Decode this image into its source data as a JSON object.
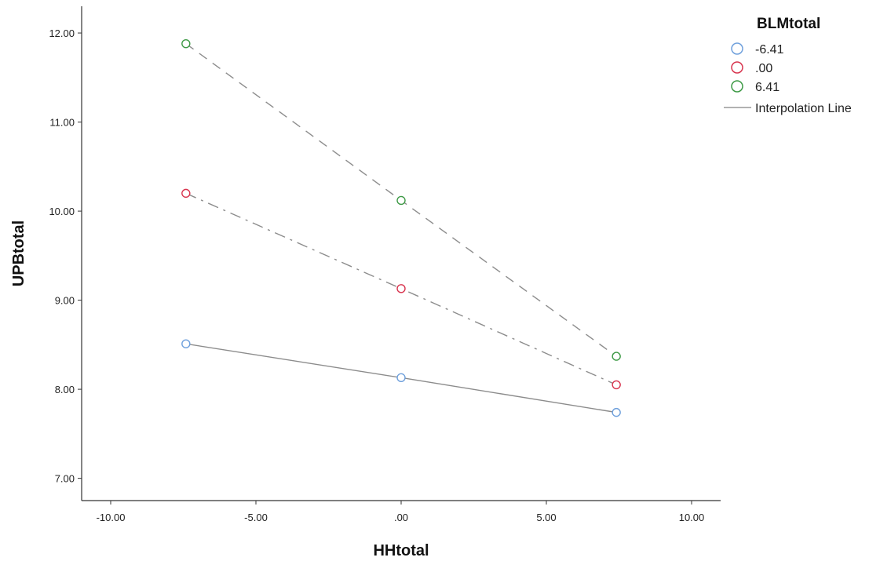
{
  "chart_data": {
    "type": "line",
    "xlabel": "HHtotal",
    "ylabel": "UPBtotal",
    "xlim": [
      -11.0,
      11.0
    ],
    "ylim": [
      6.75,
      12.3
    ],
    "x_ticks": [
      -10,
      -5,
      0,
      5,
      10
    ],
    "x_tick_labels": [
      "-10.00",
      "-5.00",
      ".00",
      "5.00",
      "10.00"
    ],
    "y_ticks": [
      7,
      8,
      9,
      10,
      11,
      12
    ],
    "y_tick_labels": [
      "7.00",
      "8.00",
      "9.00",
      "10.00",
      "11.00",
      "12.00"
    ],
    "grid": false,
    "legend": {
      "title": "BLMtotal",
      "placement": "right",
      "interpolation_label": "Interpolation Line"
    },
    "series": [
      {
        "name": "-6.41",
        "color": "#6fa0dc",
        "line_style": "solid",
        "x": [
          -7.41,
          0.0,
          7.41
        ],
        "y": [
          8.51,
          8.13,
          7.74
        ]
      },
      {
        "name": ".00",
        "color": "#d8354f",
        "line_style": "dash-dot",
        "x": [
          -7.41,
          0.0,
          7.41
        ],
        "y": [
          10.2,
          9.13,
          8.05
        ]
      },
      {
        "name": "6.41",
        "color": "#3e9a46",
        "line_style": "dashed",
        "x": [
          -7.41,
          0.0,
          7.41
        ],
        "y": [
          11.88,
          10.12,
          8.37
        ]
      }
    ]
  }
}
